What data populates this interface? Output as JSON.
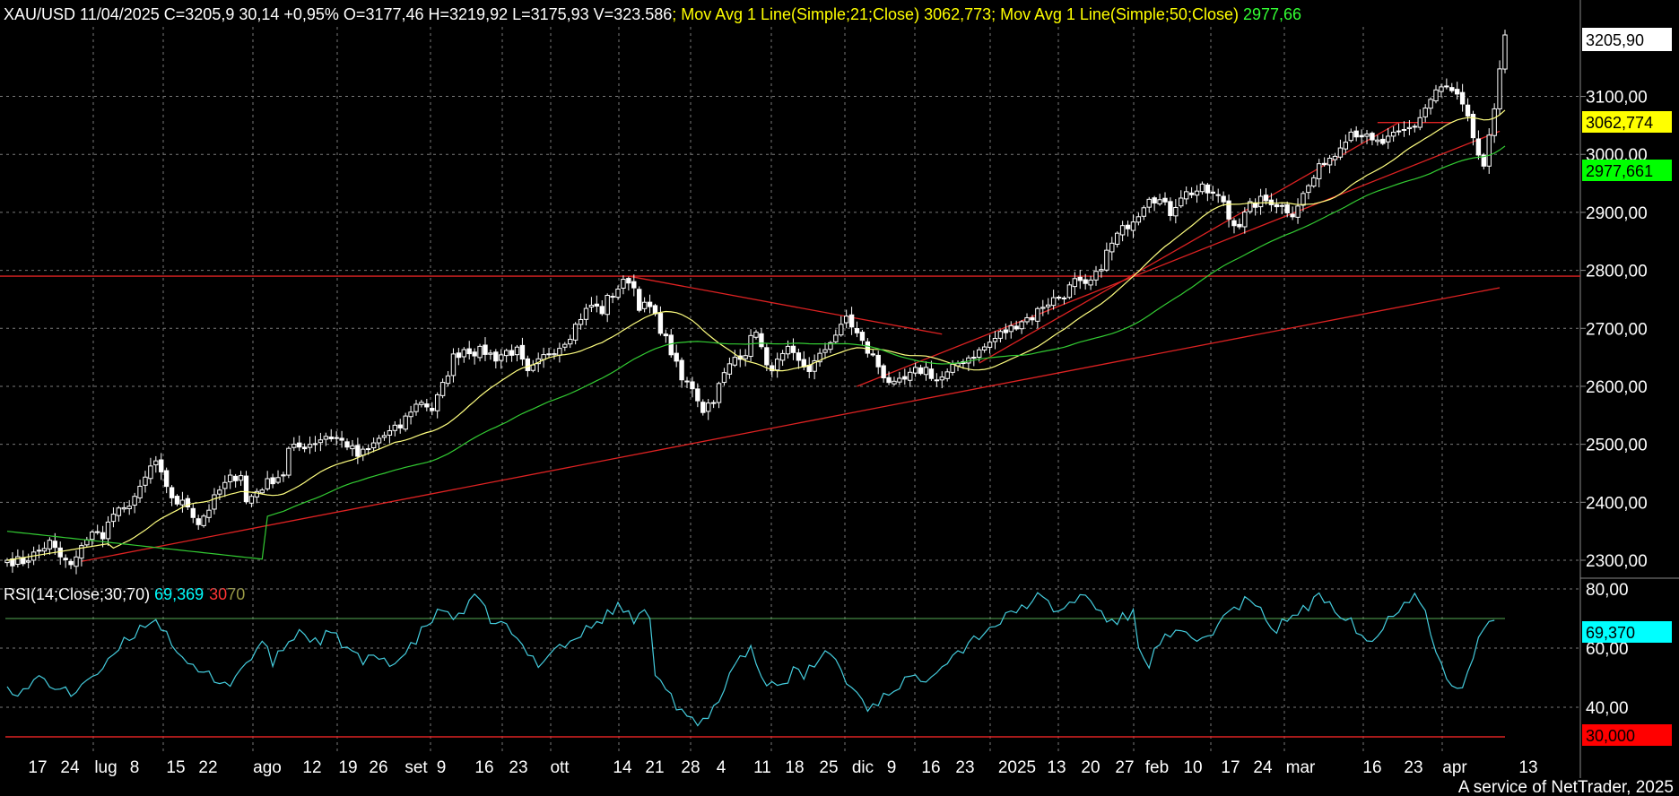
{
  "header": {
    "symbol_line": "XAU/USD 11/04/2025 C=3205,9 30,14 +0,95% O=3177,46 H=3219,92 L=3175,93 V=323.586",
    "ma21_label": "; Mov Avg 1 Line(Simple;21;Close) ",
    "ma21_value": "3062,773",
    "ma50_label": "; Mov Avg 1 Line(Simple;50;Close) ",
    "ma50_value": "2977,66"
  },
  "rsi_header": {
    "label": "RSI(14;Close;30;70) ",
    "value": "69,369",
    "low": "30",
    "high": "70"
  },
  "badges": {
    "price": "3205,90",
    "ma21": "3062,774",
    "ma50": "2977,661",
    "rsi": "69,370",
    "rsi_low": "30,000"
  },
  "footer": "A service of NetTrader, 2025",
  "colors": {
    "background": "#000000",
    "grid": "#7a7a7a",
    "candle_up": "#ffffff",
    "candle_down": "#ffffff",
    "ma21": "#ffff80",
    "ma50": "#33cc33",
    "trendline": "#dd2222",
    "rsi": "#44ccdd",
    "rsi_upper": "#55aa55",
    "rsi_lower": "#dd2222",
    "badge_ma21": "#ffff00",
    "badge_ma50": "#00ff00",
    "badge_rsi": "#00ffff",
    "badge_rsi_low": "#ff0000"
  },
  "chart_data": [
    {
      "type": "candlestick",
      "title": "XAU/USD",
      "xlabel": "",
      "ylabel": "",
      "x_tick_labels": [
        "17",
        "24",
        "lug",
        "8",
        "15",
        "22",
        "ago",
        "12",
        "19",
        "26",
        "set",
        "9",
        "16",
        "23",
        "ott",
        "14",
        "21",
        "28",
        "4",
        "11",
        "18",
        "25",
        "dic",
        "9",
        "16",
        "23",
        "2025",
        "13",
        "20",
        "27",
        "feb",
        "10",
        "17",
        "24",
        "mar",
        "16",
        "23",
        "apr",
        "13"
      ],
      "y_ticks": [
        "2300,00",
        "2400,00",
        "2500,00",
        "2600,00",
        "2700,00",
        "2800,00",
        "2900,00",
        "3000,00",
        "3100,00"
      ],
      "ylim": [
        2275,
        3235
      ],
      "grid": true,
      "series": [
        {
          "name": "XAU/USD"
        },
        {
          "name": "Mov Avg 1 Line(Simple;21;Close)",
          "last": 3062.773
        },
        {
          "name": "Mov Avg 1 Line(Simple;50;Close)",
          "last": 2977.66
        }
      ],
      "anchors": [
        [
          0,
          2300
        ],
        [
          3,
          2298
        ],
        [
          5,
          2310
        ],
        [
          8,
          2330
        ],
        [
          10,
          2305
        ],
        [
          12,
          2290
        ],
        [
          13,
          2300
        ],
        [
          14,
          2330
        ],
        [
          16,
          2345
        ],
        [
          18,
          2345
        ],
        [
          20,
          2380
        ],
        [
          22,
          2385
        ],
        [
          23,
          2400
        ],
        [
          25,
          2420
        ],
        [
          27,
          2460
        ],
        [
          28,
          2470
        ],
        [
          30,
          2420
        ],
        [
          32,
          2400
        ],
        [
          34,
          2395
        ],
        [
          36,
          2365
        ],
        [
          38,
          2390
        ],
        [
          40,
          2420
        ],
        [
          42,
          2440
        ],
        [
          44,
          2450
        ],
        [
          45,
          2400
        ],
        [
          47,
          2420
        ],
        [
          50,
          2440
        ],
        [
          52,
          2450
        ],
        [
          53,
          2490
        ],
        [
          55,
          2495
        ],
        [
          58,
          2505
        ],
        [
          60,
          2515
        ],
        [
          62,
          2510
        ],
        [
          64,
          2500
        ],
        [
          66,
          2480
        ],
        [
          68,
          2490
        ],
        [
          70,
          2510
        ],
        [
          72,
          2520
        ],
        [
          74,
          2530
        ],
        [
          76,
          2560
        ],
        [
          78,
          2575
        ],
        [
          80,
          2560
        ],
        [
          82,
          2600
        ],
        [
          84,
          2650
        ],
        [
          86,
          2665
        ],
        [
          88,
          2660
        ],
        [
          90,
          2660
        ],
        [
          92,
          2650
        ],
        [
          94,
          2660
        ],
        [
          96,
          2660
        ],
        [
          98,
          2620
        ],
        [
          100,
          2640
        ],
        [
          102,
          2660
        ],
        [
          104,
          2670
        ],
        [
          106,
          2690
        ],
        [
          108,
          2720
        ],
        [
          110,
          2740
        ],
        [
          112,
          2730
        ],
        [
          113,
          2750
        ],
        [
          115,
          2770
        ],
        [
          117,
          2785
        ],
        [
          118,
          2770
        ],
        [
          119,
          2740
        ],
        [
          121,
          2735
        ],
        [
          123,
          2700
        ],
        [
          125,
          2660
        ],
        [
          127,
          2610
        ],
        [
          129,
          2600
        ],
        [
          131,
          2560
        ],
        [
          133,
          2580
        ],
        [
          135,
          2620
        ],
        [
          137,
          2650
        ],
        [
          139,
          2660
        ],
        [
          141,
          2700
        ],
        [
          143,
          2630
        ],
        [
          145,
          2640
        ],
        [
          147,
          2660
        ],
        [
          149,
          2640
        ],
        [
          151,
          2630
        ],
        [
          153,
          2650
        ],
        [
          155,
          2680
        ],
        [
          157,
          2700
        ],
        [
          158,
          2720
        ],
        [
          160,
          2690
        ],
        [
          162,
          2660
        ],
        [
          163,
          2650
        ],
        [
          165,
          2620
        ],
        [
          167,
          2600
        ],
        [
          169,
          2610
        ],
        [
          171,
          2625
        ],
        [
          173,
          2630
        ],
        [
          175,
          2610
        ],
        [
          177,
          2620
        ],
        [
          179,
          2640
        ],
        [
          181,
          2650
        ],
        [
          183,
          2660
        ],
        [
          185,
          2675
        ],
        [
          187,
          2690
        ],
        [
          189,
          2700
        ],
        [
          191,
          2715
        ],
        [
          193,
          2720
        ],
        [
          195,
          2740
        ],
        [
          197,
          2750
        ],
        [
          199,
          2760
        ],
        [
          201,
          2780
        ],
        [
          203,
          2770
        ],
        [
          205,
          2790
        ],
        [
          207,
          2830
        ],
        [
          209,
          2860
        ],
        [
          211,
          2880
        ],
        [
          213,
          2900
        ],
        [
          215,
          2930
        ],
        [
          217,
          2920
        ],
        [
          219,
          2900
        ],
        [
          221,
          2930
        ],
        [
          223,
          2935
        ],
        [
          225,
          2940
        ],
        [
          227,
          2930
        ],
        [
          229,
          2920
        ],
        [
          230,
          2890
        ],
        [
          232,
          2880
        ],
        [
          234,
          2910
        ],
        [
          236,
          2920
        ],
        [
          238,
          2920
        ],
        [
          240,
          2910
        ],
        [
          242,
          2900
        ],
        [
          244,
          2930
        ],
        [
          246,
          2960
        ],
        [
          248,
          2990
        ],
        [
          250,
          3000
        ],
        [
          251,
          3020
        ],
        [
          253,
          3040
        ],
        [
          255,
          3035
        ],
        [
          257,
          3020
        ],
        [
          259,
          3020
        ],
        [
          261,
          3030
        ],
        [
          263,
          3040
        ],
        [
          265,
          3050
        ],
        [
          267,
          3080
        ],
        [
          269,
          3110
        ],
        [
          271,
          3115
        ],
        [
          273,
          3100
        ],
        [
          275,
          3060
        ],
        [
          276,
          3020
        ],
        [
          277,
          3000
        ],
        [
          278,
          2980
        ],
        [
          280,
          3070
        ],
        [
          281,
          3150
        ],
        [
          282,
          3206
        ]
      ]
    },
    {
      "type": "line",
      "title": "RSI(14;Close;30;70)",
      "xlabel": "",
      "ylabel": "",
      "y_ticks": [
        "40,00",
        "60,00",
        "80,00"
      ],
      "ylim": [
        25,
        85
      ],
      "levels": [
        30,
        70
      ],
      "last": 69.369,
      "series": [
        {
          "name": "RSI(14;Close;30;70)"
        }
      ],
      "anchors": [
        [
          0,
          47
        ],
        [
          3,
          45
        ],
        [
          6,
          50
        ],
        [
          9,
          47
        ],
        [
          12,
          44
        ],
        [
          15,
          50
        ],
        [
          18,
          52
        ],
        [
          21,
          60
        ],
        [
          24,
          65
        ],
        [
          27,
          70
        ],
        [
          30,
          66
        ],
        [
          33,
          55
        ],
        [
          36,
          52
        ],
        [
          39,
          50
        ],
        [
          42,
          48
        ],
        [
          45,
          55
        ],
        [
          48,
          62
        ],
        [
          50,
          55
        ],
        [
          52,
          60
        ],
        [
          55,
          66
        ],
        [
          58,
          62
        ],
        [
          61,
          65
        ],
        [
          64,
          60
        ],
        [
          67,
          55
        ],
        [
          70,
          57
        ],
        [
          73,
          55
        ],
        [
          76,
          60
        ],
        [
          79,
          68
        ],
        [
          82,
          73
        ],
        [
          85,
          70
        ],
        [
          88,
          77
        ],
        [
          91,
          70
        ],
        [
          94,
          67
        ],
        [
          97,
          60
        ],
        [
          100,
          55
        ],
        [
          103,
          60
        ],
        [
          106,
          62
        ],
        [
          109,
          66
        ],
        [
          112,
          70
        ],
        [
          115,
          74
        ],
        [
          118,
          70
        ],
        [
          121,
          72
        ],
        [
          122,
          52
        ],
        [
          124,
          48
        ],
        [
          126,
          40
        ],
        [
          128,
          36
        ],
        [
          130,
          34
        ],
        [
          132,
          36
        ],
        [
          134,
          42
        ],
        [
          136,
          52
        ],
        [
          138,
          57
        ],
        [
          140,
          60
        ],
        [
          142,
          50
        ],
        [
          144,
          48
        ],
        [
          146,
          48
        ],
        [
          148,
          52
        ],
        [
          150,
          50
        ],
        [
          152,
          55
        ],
        [
          154,
          58
        ],
        [
          156,
          57
        ],
        [
          158,
          48
        ],
        [
          160,
          45
        ],
        [
          162,
          40
        ],
        [
          164,
          42
        ],
        [
          166,
          45
        ],
        [
          168,
          48
        ],
        [
          170,
          50
        ],
        [
          172,
          48
        ],
        [
          174,
          52
        ],
        [
          176,
          55
        ],
        [
          178,
          58
        ],
        [
          180,
          60
        ],
        [
          182,
          63
        ],
        [
          184,
          66
        ],
        [
          186,
          68
        ],
        [
          188,
          70
        ],
        [
          190,
          73
        ],
        [
          192,
          75
        ],
        [
          194,
          77
        ],
        [
          196,
          75
        ],
        [
          198,
          72
        ],
        [
          200,
          75
        ],
        [
          202,
          78
        ],
        [
          204,
          76
        ],
        [
          206,
          72
        ],
        [
          208,
          68
        ],
        [
          210,
          70
        ],
        [
          212,
          72
        ],
        [
          213,
          60
        ],
        [
          215,
          55
        ],
        [
          217,
          62
        ],
        [
          219,
          64
        ],
        [
          221,
          65
        ],
        [
          223,
          62
        ],
        [
          225,
          63
        ],
        [
          227,
          66
        ],
        [
          229,
          70
        ],
        [
          231,
          73
        ],
        [
          233,
          76
        ],
        [
          235,
          74
        ],
        [
          237,
          70
        ],
        [
          239,
          66
        ],
        [
          241,
          70
        ],
        [
          243,
          72
        ],
        [
          245,
          74
        ],
        [
          247,
          77
        ],
        [
          249,
          76
        ],
        [
          251,
          72
        ],
        [
          253,
          70
        ],
        [
          255,
          64
        ],
        [
          257,
          62
        ],
        [
          259,
          67
        ],
        [
          261,
          72
        ],
        [
          263,
          76
        ],
        [
          265,
          78
        ],
        [
          267,
          74
        ],
        [
          268,
          66
        ],
        [
          270,
          55
        ],
        [
          272,
          46
        ],
        [
          274,
          46
        ],
        [
          276,
          58
        ],
        [
          278,
          66
        ],
        [
          280,
          69.4
        ]
      ]
    }
  ]
}
